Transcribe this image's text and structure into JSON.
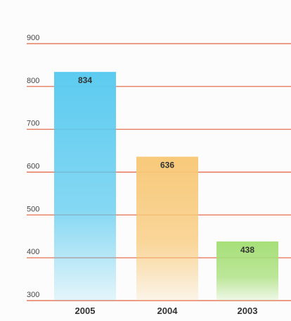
{
  "chart_data": {
    "type": "bar",
    "categories": [
      "2005",
      "2004",
      "2003"
    ],
    "values": [
      834,
      636,
      438
    ],
    "colors": [
      "#5ccbf0",
      "#f8c979",
      "#a6df78"
    ],
    "grid_color": "#e2613e",
    "ylim": [
      300,
      900
    ],
    "yticks": [
      300,
      400,
      500,
      600,
      700,
      800,
      900
    ],
    "grid": true
  }
}
